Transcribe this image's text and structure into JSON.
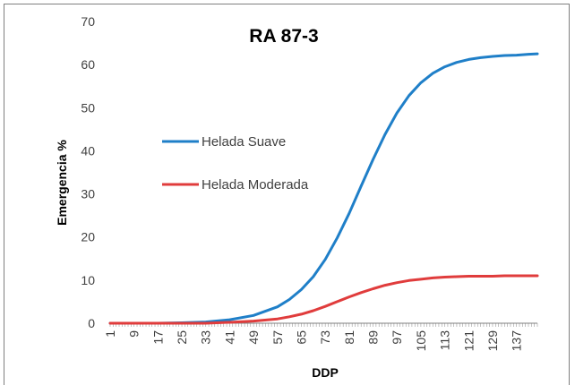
{
  "chart_data": {
    "type": "line",
    "title": "RA 87-3",
    "xlabel": "DDP",
    "ylabel": "Emergencia %",
    "ylim": [
      0,
      70
    ],
    "yticks": [
      0,
      10,
      20,
      30,
      40,
      50,
      60,
      70
    ],
    "xlim": [
      1,
      144
    ],
    "xticks": [
      "1",
      "9",
      "17",
      "25",
      "33",
      "41",
      "49",
      "57",
      "65",
      "73",
      "81",
      "89",
      "97",
      "105",
      "113",
      "121",
      "129",
      "137"
    ],
    "grid": false,
    "legend_position": "left-center",
    "series": [
      {
        "name": "Helada Suave",
        "color": "#1f7fc8",
        "x": [
          1,
          9,
          17,
          25,
          33,
          41,
          49,
          57,
          61,
          65,
          69,
          73,
          77,
          81,
          85,
          89,
          93,
          97,
          101,
          105,
          109,
          113,
          117,
          121,
          125,
          129,
          133,
          137,
          141,
          144
        ],
        "y": [
          0,
          0,
          0,
          0.1,
          0.3,
          0.8,
          1.8,
          3.8,
          5.5,
          7.8,
          10.8,
          14.8,
          19.8,
          25.5,
          31.8,
          38.0,
          43.8,
          48.8,
          52.8,
          55.8,
          58.0,
          59.5,
          60.5,
          61.2,
          61.6,
          61.9,
          62.1,
          62.2,
          62.4,
          62.5
        ]
      },
      {
        "name": "Helada Moderada",
        "color": "#e03c3c",
        "x": [
          1,
          9,
          17,
          25,
          33,
          41,
          49,
          57,
          61,
          65,
          69,
          73,
          77,
          81,
          85,
          89,
          93,
          97,
          101,
          105,
          109,
          113,
          117,
          121,
          125,
          129,
          133,
          137,
          141,
          144
        ],
        "y": [
          0,
          0,
          0,
          0,
          0,
          0.2,
          0.5,
          1.0,
          1.5,
          2.1,
          2.9,
          3.9,
          5.0,
          6.1,
          7.1,
          8.0,
          8.8,
          9.4,
          9.9,
          10.2,
          10.5,
          10.7,
          10.8,
          10.9,
          10.9,
          10.9,
          11.0,
          11.0,
          11.0,
          11.0
        ]
      }
    ]
  }
}
